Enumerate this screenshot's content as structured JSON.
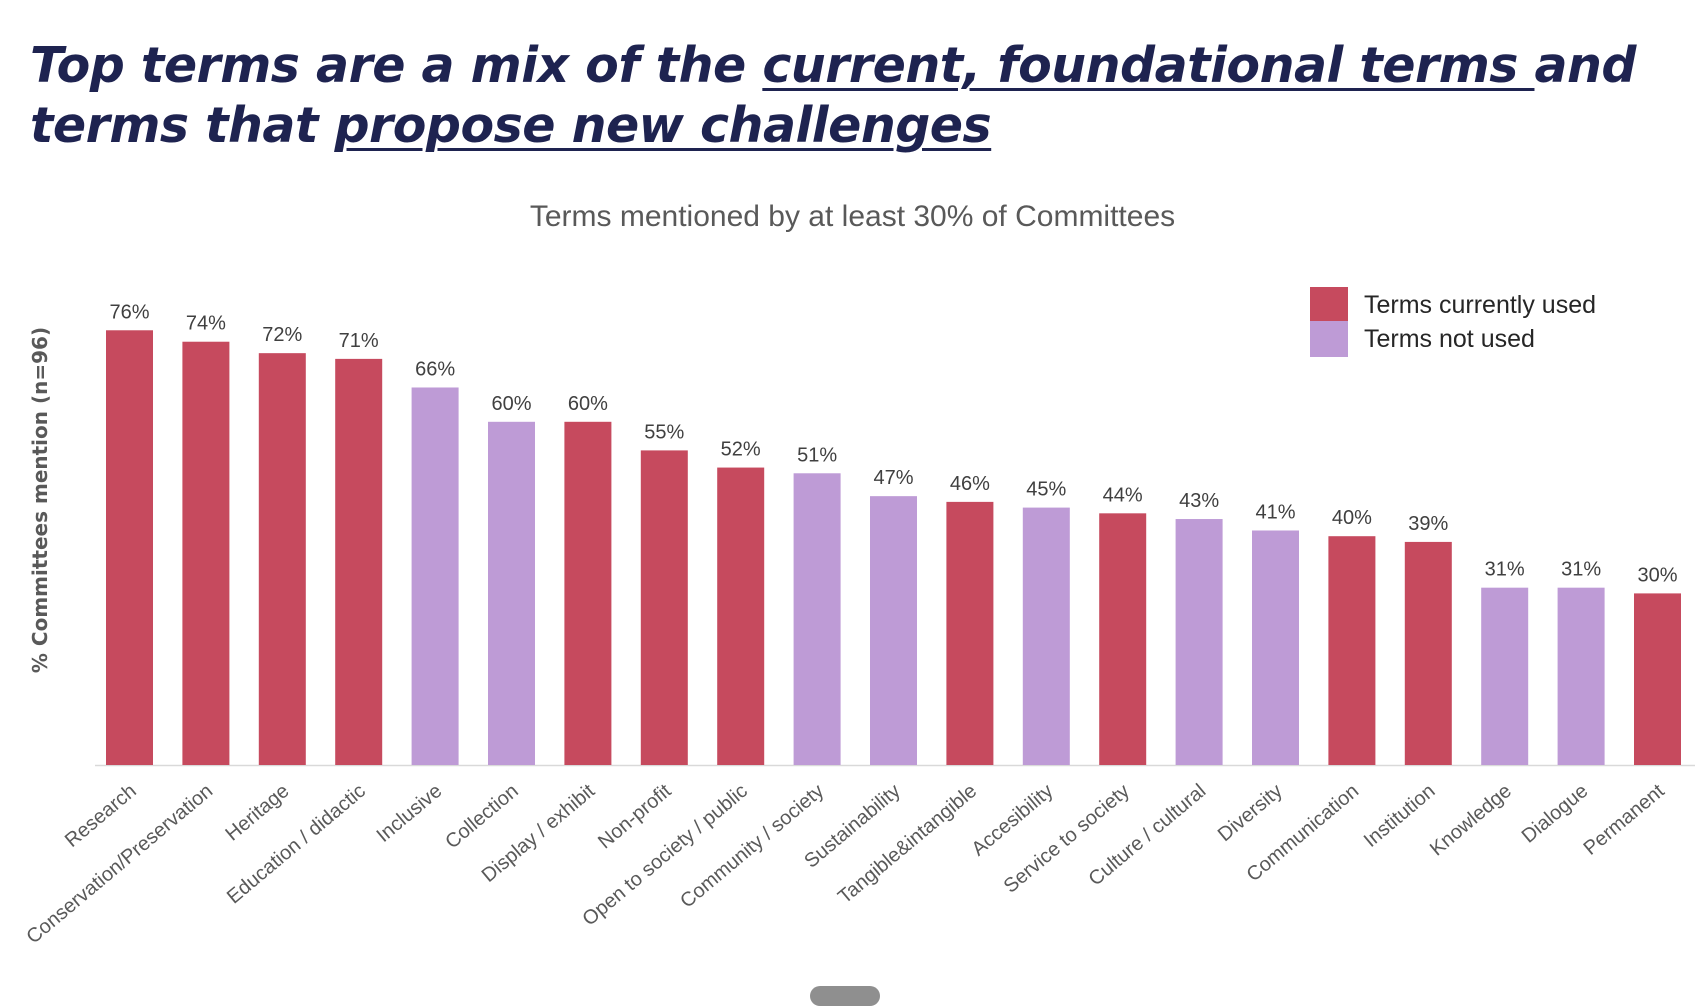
{
  "headline": {
    "part1": "Top terms are a mix of the ",
    "underline1": "current, foundational terms ",
    "part2": "and terms that ",
    "underline2": "propose new challenges"
  },
  "colors": {
    "used": "#c64a5e",
    "not_used": "#be9bd6",
    "headline": "#1e2350",
    "text": "#595959"
  },
  "chart_data": {
    "type": "bar",
    "title": "Terms mentioned by at least 30% of Committees",
    "xlabel": "",
    "ylabel": "% Committees mention (n=96)",
    "ylim": [
      0,
      80
    ],
    "grid": false,
    "legend_position": "top-right",
    "legend": [
      {
        "key": "used",
        "label": "Terms currently used"
      },
      {
        "key": "not_used",
        "label": "Terms not used"
      }
    ],
    "categories": [
      "Research",
      "Conservation/Preservation",
      "Heritage",
      "Education / didactic",
      "Inclusive",
      "Collection",
      "Display / exhibit",
      "Non-profit",
      "Open to society / public",
      "Community / society",
      "Sustainability",
      "Tangible&intangible",
      "Accesibility",
      "Service to society",
      "Culture / cultural",
      "Diversity",
      "Communication",
      "Institution",
      "Knowledge",
      "Dialogue",
      "Permanent"
    ],
    "values": [
      76,
      74,
      72,
      71,
      66,
      60,
      60,
      55,
      52,
      51,
      47,
      46,
      45,
      44,
      43,
      41,
      40,
      39,
      31,
      31,
      30
    ],
    "status": [
      "used",
      "used",
      "used",
      "used",
      "not_used",
      "not_used",
      "used",
      "used",
      "used",
      "not_used",
      "not_used",
      "used",
      "not_used",
      "used",
      "not_used",
      "not_used",
      "used",
      "used",
      "not_used",
      "not_used",
      "used"
    ],
    "value_labels": [
      "76%",
      "74%",
      "72%",
      "71%",
      "66%",
      "60%",
      "60%",
      "55%",
      "52%",
      "51%",
      "47%",
      "46%",
      "45%",
      "44%",
      "43%",
      "41%",
      "40%",
      "39%",
      "31%",
      "31%",
      "30%"
    ]
  }
}
